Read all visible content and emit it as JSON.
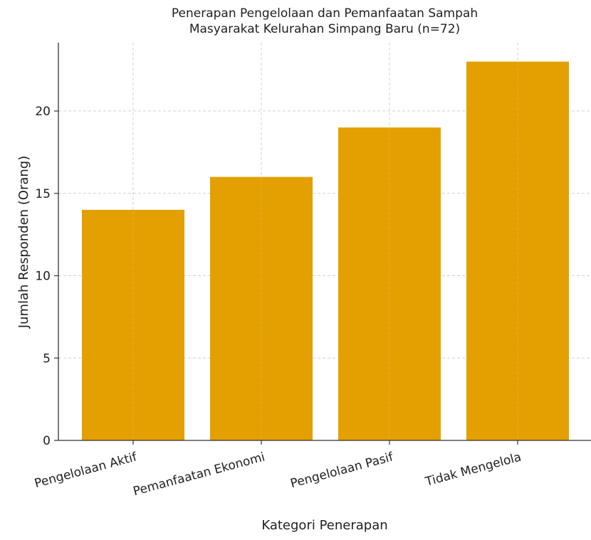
{
  "chart_data": {
    "type": "bar",
    "title": [
      "Penerapan Pengelolaan dan Pemanfaatan Sampah",
      "Masyarakat Kelurahan Simpang Baru (n=72)"
    ],
    "xlabel": "Kategori Penerapan",
    "ylabel": "Jumlah Responden (Orang)",
    "categories": [
      "Pengelolaan Aktif",
      "Pemanfaatan Ekonomi",
      "Pengelolaan Pasif",
      "Tidak Mengelola"
    ],
    "values": [
      14,
      16,
      19,
      23
    ],
    "ylim": [
      0,
      24.15
    ],
    "yticks": [
      0,
      5,
      10,
      15,
      20
    ],
    "grid": true,
    "colors": {
      "bar": "#E3A000"
    }
  }
}
